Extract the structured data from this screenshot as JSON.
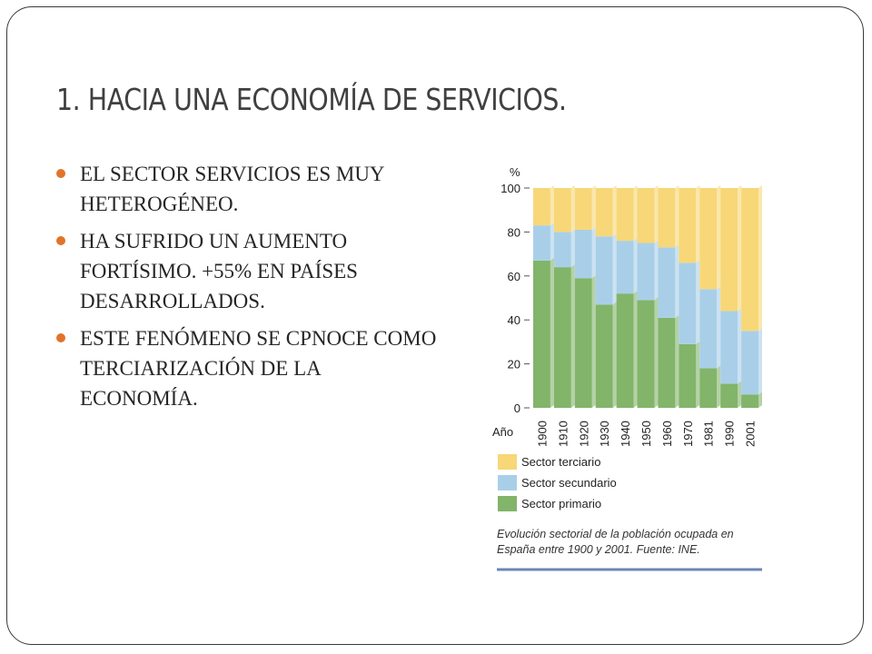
{
  "slide": {
    "title": "1. HACIA UNA ECONOMÍA DE SERVICIOS.",
    "bullets": [
      "EL SECTOR SERVICIOS ES MUY HETEROGÉNEO.",
      "HA SUFRIDO UN AUMENTO FORTÍSIMO. +55% EN PAÍSES DESARROLLADOS.",
      "ESTE FENÓMENO SE CPNOCE COMO TERCIARIZACIÓN DE LA ECONOMÍA."
    ]
  },
  "colors": {
    "bullet": "#e0742a",
    "terciario": "#f7d777",
    "secundario": "#a9cfe8",
    "primario": "#82b46a"
  },
  "chart_data": {
    "type": "bar",
    "stacked": true,
    "ylabel": "%",
    "xlabel": "Año",
    "ylim": [
      0,
      100
    ],
    "yticks": [
      0,
      20,
      40,
      60,
      80,
      100
    ],
    "categories": [
      "1900",
      "1910",
      "1920",
      "1930",
      "1940",
      "1950",
      "1960",
      "1970",
      "1981",
      "1990",
      "2001"
    ],
    "series": [
      {
        "name": "Sector primario",
        "values": [
          67,
          64,
          59,
          47,
          52,
          49,
          41,
          29,
          18,
          11,
          6
        ]
      },
      {
        "name": "Sector secundario",
        "values": [
          16,
          16,
          22,
          31,
          24,
          26,
          32,
          37,
          36,
          33,
          29
        ]
      },
      {
        "name": "Sector terciario",
        "values": [
          17,
          20,
          19,
          22,
          24,
          25,
          27,
          34,
          46,
          56,
          65
        ]
      }
    ],
    "legend_order": [
      "Sector terciario",
      "Sector secundario",
      "Sector primario"
    ],
    "legend_position": "bottom",
    "caption": "Evolución sectorial de la población ocupada en España entre 1900 y 2001. Fuente: INE."
  }
}
